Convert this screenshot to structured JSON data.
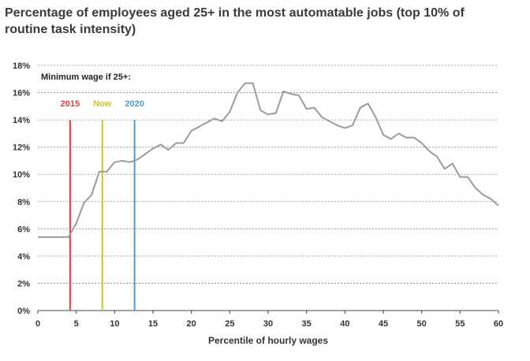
{
  "chart_data": {
    "type": "line",
    "title": "Percentage of employees aged 25+ in the most automatable jobs (top 10% of routine task intensity)",
    "xlabel": "Percentile of hourly wages",
    "ylabel": "",
    "xlim": [
      0,
      60
    ],
    "ylim": [
      0,
      18
    ],
    "xticks": [
      0,
      5,
      10,
      15,
      20,
      25,
      30,
      35,
      40,
      45,
      50,
      55,
      60
    ],
    "yticks": [
      "0%",
      "2%",
      "4%",
      "6%",
      "8%",
      "10%",
      "12%",
      "14%",
      "16%",
      "18%"
    ],
    "grid": "horizontal dotted",
    "series": [
      {
        "color": "#9b9b9b",
        "x": [
          0,
          4,
          5,
          6,
          7,
          8,
          9,
          10,
          11,
          12,
          13,
          14,
          15,
          16,
          17,
          18,
          19,
          20,
          21,
          22,
          23,
          24,
          25,
          26,
          27,
          28,
          29,
          30,
          31,
          32,
          33,
          34,
          35,
          36,
          37,
          38,
          39,
          40,
          41,
          42,
          43,
          44,
          45,
          46,
          47,
          48,
          49,
          50,
          51,
          52,
          53,
          54,
          55,
          56,
          57,
          58,
          59,
          60
        ],
        "values": [
          5.4,
          5.4,
          6.4,
          7.9,
          8.5,
          10.2,
          10.2,
          10.9,
          11.0,
          10.9,
          11.1,
          11.5,
          11.9,
          12.2,
          11.8,
          12.3,
          12.3,
          13.2,
          13.5,
          13.8,
          14.1,
          13.9,
          14.6,
          16.0,
          16.7,
          16.7,
          14.7,
          14.4,
          14.5,
          16.1,
          15.9,
          15.8,
          14.8,
          14.9,
          14.2,
          13.9,
          13.6,
          13.4,
          13.6,
          14.9,
          15.2,
          14.2,
          12.9,
          12.6,
          13.0,
          12.7,
          12.7,
          12.3,
          11.7,
          11.3,
          10.4,
          10.8,
          9.8,
          9.8,
          9.0,
          8.5,
          8.2,
          7.7
        ]
      }
    ],
    "annotations": {
      "label": "Minimum wage if 25+:",
      "lines": [
        {
          "label": "2015",
          "x": 4.2,
          "color": "#e04040"
        },
        {
          "label": "Now",
          "x": 8.4,
          "color": "#c8c820"
        },
        {
          "label": "2020",
          "x": 12.6,
          "color": "#4a9bd8"
        }
      ],
      "line_top": 14
    }
  }
}
